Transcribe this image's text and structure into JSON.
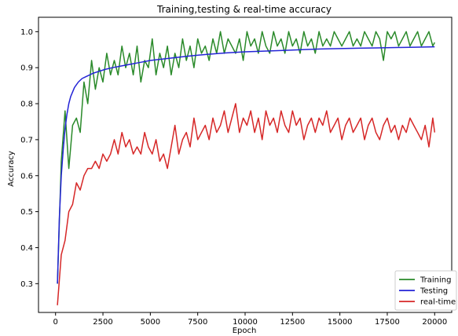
{
  "chart_data": {
    "type": "line",
    "title": "Training,testing & real-time accuracy",
    "xlabel": "Epoch",
    "ylabel": "Accuracy",
    "xlim": [
      -900,
      20900
    ],
    "ylim": [
      0.22,
      1.04
    ],
    "xticks": [
      0,
      2500,
      5000,
      7500,
      10000,
      12500,
      15000,
      17500,
      20000
    ],
    "yticks": [
      0.3,
      0.4,
      0.5,
      0.6,
      0.7,
      0.8,
      0.9,
      1.0
    ],
    "grid": false,
    "legend_position": "lower-right",
    "series": [
      {
        "name": "Training",
        "color": "#2a8a2a",
        "x": [
          100,
          300,
          500,
          700,
          900,
          1100,
          1300,
          1500,
          1700,
          1900,
          2100,
          2300,
          2500,
          2700,
          2900,
          3100,
          3300,
          3500,
          3700,
          3900,
          4100,
          4300,
          4500,
          4700,
          4900,
          5100,
          5300,
          5500,
          5700,
          5900,
          6100,
          6300,
          6500,
          6700,
          6900,
          7100,
          7300,
          7500,
          7700,
          7900,
          8100,
          8300,
          8500,
          8700,
          8900,
          9100,
          9300,
          9500,
          9700,
          9900,
          10100,
          10300,
          10500,
          10700,
          10900,
          11100,
          11300,
          11500,
          11700,
          11900,
          12100,
          12300,
          12500,
          12700,
          12900,
          13100,
          13300,
          13500,
          13700,
          13900,
          14100,
          14300,
          14500,
          14700,
          14900,
          15100,
          15300,
          15500,
          15700,
          15900,
          16100,
          16300,
          16500,
          16700,
          16900,
          17100,
          17300,
          17500,
          17700,
          17900,
          18100,
          18300,
          18500,
          18700,
          18900,
          19100,
          19300,
          19500,
          19700,
          19900,
          20000
        ],
        "values": [
          0.3,
          0.64,
          0.78,
          0.62,
          0.74,
          0.76,
          0.72,
          0.86,
          0.8,
          0.92,
          0.84,
          0.9,
          0.86,
          0.94,
          0.88,
          0.92,
          0.88,
          0.96,
          0.9,
          0.94,
          0.88,
          0.96,
          0.86,
          0.92,
          0.9,
          0.98,
          0.88,
          0.94,
          0.9,
          0.96,
          0.88,
          0.94,
          0.9,
          0.98,
          0.92,
          0.96,
          0.9,
          0.98,
          0.94,
          0.96,
          0.92,
          0.98,
          0.94,
          1.0,
          0.94,
          0.98,
          0.96,
          0.94,
          0.98,
          0.92,
          1.0,
          0.96,
          0.98,
          0.94,
          1.0,
          0.96,
          0.94,
          1.0,
          0.96,
          0.98,
          0.94,
          1.0,
          0.96,
          0.98,
          0.94,
          1.0,
          0.96,
          0.98,
          0.94,
          1.0,
          0.96,
          0.98,
          0.96,
          1.0,
          0.98,
          0.96,
          0.98,
          1.0,
          0.96,
          0.98,
          0.96,
          1.0,
          0.98,
          0.96,
          1.0,
          0.98,
          0.92,
          1.0,
          0.98,
          1.0,
          0.96,
          0.98,
          1.0,
          0.96,
          0.98,
          1.0,
          0.96,
          0.98,
          1.0,
          0.96,
          0.97
        ]
      },
      {
        "name": "Testing",
        "color": "#2323d6",
        "x": [
          100,
          200,
          300,
          400,
          500,
          600,
          700,
          800,
          1000,
          1200,
          1400,
          1600,
          1800,
          2000,
          2300,
          2600,
          3000,
          3500,
          4000,
          4500,
          5000,
          5500,
          6000,
          7000,
          8000,
          9000,
          10000,
          11000,
          12000,
          13000,
          14000,
          15000,
          16000,
          17000,
          18000,
          19000,
          20000
        ],
        "values": [
          0.3,
          0.48,
          0.6,
          0.67,
          0.73,
          0.77,
          0.8,
          0.82,
          0.845,
          0.86,
          0.87,
          0.875,
          0.88,
          0.885,
          0.89,
          0.895,
          0.9,
          0.905,
          0.91,
          0.915,
          0.92,
          0.923,
          0.926,
          0.932,
          0.937,
          0.941,
          0.944,
          0.946,
          0.948,
          0.95,
          0.952,
          0.953,
          0.954,
          0.955,
          0.956,
          0.957,
          0.958
        ]
      },
      {
        "name": "real-time",
        "color": "#d62727",
        "x": [
          100,
          300,
          500,
          700,
          900,
          1100,
          1300,
          1500,
          1700,
          1900,
          2100,
          2300,
          2500,
          2700,
          2900,
          3100,
          3300,
          3500,
          3700,
          3900,
          4100,
          4300,
          4500,
          4700,
          4900,
          5100,
          5300,
          5500,
          5700,
          5900,
          6100,
          6300,
          6500,
          6700,
          6900,
          7100,
          7300,
          7500,
          7700,
          7900,
          8100,
          8300,
          8500,
          8700,
          8900,
          9100,
          9300,
          9500,
          9700,
          9900,
          10100,
          10300,
          10500,
          10700,
          10900,
          11100,
          11300,
          11500,
          11700,
          11900,
          12100,
          12300,
          12500,
          12700,
          12900,
          13100,
          13300,
          13500,
          13700,
          13900,
          14100,
          14300,
          14500,
          14700,
          14900,
          15100,
          15300,
          15500,
          15700,
          15900,
          16100,
          16300,
          16500,
          16700,
          16900,
          17100,
          17300,
          17500,
          17700,
          17900,
          18100,
          18300,
          18500,
          18700,
          18900,
          19100,
          19300,
          19500,
          19700,
          19900,
          20000
        ],
        "values": [
          0.24,
          0.38,
          0.42,
          0.5,
          0.52,
          0.58,
          0.56,
          0.6,
          0.62,
          0.62,
          0.64,
          0.62,
          0.66,
          0.64,
          0.66,
          0.7,
          0.66,
          0.72,
          0.68,
          0.7,
          0.66,
          0.68,
          0.66,
          0.72,
          0.68,
          0.66,
          0.7,
          0.64,
          0.66,
          0.62,
          0.68,
          0.74,
          0.66,
          0.7,
          0.72,
          0.68,
          0.76,
          0.7,
          0.72,
          0.74,
          0.7,
          0.76,
          0.72,
          0.74,
          0.78,
          0.72,
          0.76,
          0.8,
          0.72,
          0.76,
          0.74,
          0.78,
          0.72,
          0.76,
          0.7,
          0.78,
          0.74,
          0.76,
          0.72,
          0.78,
          0.74,
          0.72,
          0.78,
          0.74,
          0.76,
          0.7,
          0.74,
          0.76,
          0.72,
          0.76,
          0.74,
          0.78,
          0.72,
          0.74,
          0.76,
          0.7,
          0.74,
          0.76,
          0.72,
          0.74,
          0.76,
          0.7,
          0.74,
          0.76,
          0.72,
          0.7,
          0.74,
          0.76,
          0.72,
          0.74,
          0.7,
          0.74,
          0.72,
          0.76,
          0.74,
          0.72,
          0.7,
          0.74,
          0.68,
          0.76,
          0.72
        ]
      }
    ]
  }
}
